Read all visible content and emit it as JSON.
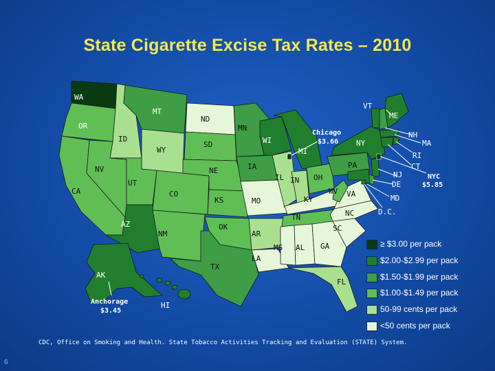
{
  "title": "State Cigarette Excise Tax Rates – 2010",
  "colors": {
    "cat1": "#0a3a12",
    "cat2": "#1f7f2e",
    "cat3": "#3d9e45",
    "cat4": "#5fbf55",
    "cat5": "#a8e08f",
    "cat6": "#e6f7d9"
  },
  "states": {
    "WA": "WA",
    "OR": "OR",
    "CA": "CA",
    "ID": "ID",
    "NV": "NV",
    "MT": "MT",
    "WY": "WY",
    "UT": "UT",
    "AZ": "AZ",
    "CO": "CO",
    "NM": "NM",
    "ND": "ND",
    "SD": "SD",
    "NE": "NE",
    "KS": "KS",
    "OK": "OK",
    "TX": "TX",
    "MN": "MN",
    "IA": "IA",
    "MO": "MO",
    "AR": "AR",
    "LA": "LA",
    "WI": "WI",
    "IL": "IL",
    "MI": "MI",
    "IN": "IN",
    "OH": "OH",
    "KY": "KY",
    "TN": "TN",
    "MS": "MS",
    "AL": "AL",
    "GA": "GA",
    "FL": "FL",
    "SC": "SC",
    "NC": "NC",
    "VA": "VA",
    "WV": "WV",
    "PA": "PA",
    "NY": "NY",
    "VT": "VT",
    "ME": "ME",
    "NH": "NH",
    "MA": "MA",
    "RI": "RI",
    "CT": "CT",
    "NJ": "NJ",
    "DE": "DE",
    "MD": "MD",
    "DC": "D.C.",
    "AK": "AK",
    "HI": "HI"
  },
  "callouts": {
    "chicago_name": "Chicago",
    "chicago_rate": "$3.66",
    "nyc_name": "NYC",
    "nyc_rate": "$5.85",
    "anchorage_name": "Anchorage",
    "anchorage_rate": "$3.45"
  },
  "legend": [
    {
      "label": "≥ $3.00 per pack",
      "color": "#0a3a12"
    },
    {
      "label": "$2.00-$2.99 per pack",
      "color": "#1f7f2e"
    },
    {
      "label": "$1.50-$1.99 per pack",
      "color": "#3d9e45"
    },
    {
      "label": "$1.00-$1.49 per pack",
      "color": "#5fbf55"
    },
    {
      "label": "50-99 cents per pack",
      "color": "#a8e08f"
    },
    {
      "label": "<50 cents per pack",
      "color": "#e6f7d9"
    }
  ],
  "source": "CDC, Office on Smoking and Health. State Tobacco Activities Tracking and Evaluation (STATE) System.",
  "page_number": "6"
}
